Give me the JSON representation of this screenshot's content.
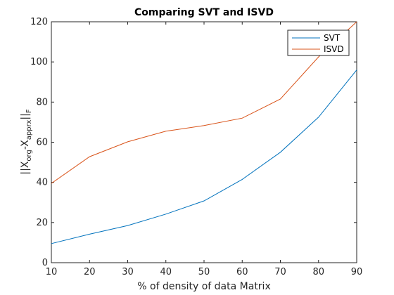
{
  "chart_data": {
    "type": "line",
    "title": "Comparing SVT and ISVD",
    "xlabel": "% of density of data Matrix",
    "ylabel": "||X_org - X_apprx||_F",
    "ylabel_parts": {
      "open": "||X",
      "sub1": "org",
      "mid": "-X",
      "sub2": "apprx",
      "close": "||",
      "sub3": "F"
    },
    "x": [
      10,
      20,
      30,
      40,
      50,
      60,
      70,
      80,
      90
    ],
    "xlim": [
      10,
      90
    ],
    "ylim": [
      0,
      120
    ],
    "xticks": [
      "10",
      "20",
      "30",
      "40",
      "50",
      "60",
      "70",
      "80",
      "90"
    ],
    "yticks": [
      "0",
      "20",
      "40",
      "60",
      "80",
      "100",
      "120"
    ],
    "xtick_values": [
      10,
      20,
      30,
      40,
      50,
      60,
      70,
      80,
      90
    ],
    "ytick_values": [
      0,
      20,
      40,
      60,
      80,
      100,
      120
    ],
    "grid": false,
    "legend_position": "top-right",
    "series": [
      {
        "name": "SVT",
        "color": "#0072BD",
        "values": [
          9.5,
          14.2,
          18.5,
          24.2,
          30.8,
          41.5,
          55.0,
          72.5,
          96.0
        ]
      },
      {
        "name": "ISVD",
        "color": "#D95319",
        "values": [
          39.5,
          52.8,
          60.2,
          65.5,
          68.3,
          72.0,
          81.5,
          102.5,
          120.0
        ]
      }
    ]
  }
}
